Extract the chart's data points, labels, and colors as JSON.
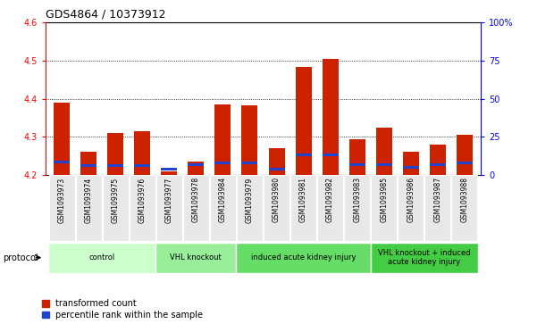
{
  "title": "GDS4864 / 10373912",
  "samples": [
    "GSM1093973",
    "GSM1093974",
    "GSM1093975",
    "GSM1093976",
    "GSM1093977",
    "GSM1093978",
    "GSM1093984",
    "GSM1093979",
    "GSM1093980",
    "GSM1093981",
    "GSM1093982",
    "GSM1093983",
    "GSM1093985",
    "GSM1093986",
    "GSM1093987",
    "GSM1093988"
  ],
  "red_values": [
    4.39,
    4.26,
    4.31,
    4.315,
    4.21,
    4.235,
    4.385,
    4.383,
    4.27,
    4.484,
    4.505,
    4.295,
    4.325,
    4.26,
    4.28,
    4.305
  ],
  "blue_values": [
    4.235,
    4.225,
    4.225,
    4.225,
    4.215,
    4.228,
    4.232,
    4.232,
    4.215,
    4.252,
    4.252,
    4.228,
    4.228,
    4.22,
    4.228,
    4.232
  ],
  "ymin": 4.2,
  "ymax": 4.6,
  "yticks_left": [
    4.2,
    4.3,
    4.4,
    4.5,
    4.6
  ],
  "yticks_right_labels": [
    "0",
    "25",
    "50",
    "75",
    "100%"
  ],
  "yticks_right_vals": [
    4.2,
    4.3,
    4.4,
    4.5,
    4.6
  ],
  "groups": [
    {
      "label": "control",
      "indices": [
        0,
        1,
        2,
        3
      ],
      "color": "#ccffcc"
    },
    {
      "label": "VHL knockout",
      "indices": [
        4,
        5,
        6
      ],
      "color": "#99ee99"
    },
    {
      "label": "induced acute kidney injury",
      "indices": [
        7,
        8,
        9,
        10,
        11
      ],
      "color": "#66dd66"
    },
    {
      "label": "VHL knockout + induced\nacute kidney injury",
      "indices": [
        12,
        13,
        14,
        15
      ],
      "color": "#44cc44"
    }
  ],
  "bar_color": "#cc2200",
  "blue_color": "#2244cc",
  "bar_width": 0.6,
  "bg_color": "#cccccc",
  "plot_bg": "#ffffff",
  "legend_red": "transformed count",
  "legend_blue": "percentile rank within the sample",
  "protocol_label": "protocol",
  "title_fontsize": 9,
  "tick_fontsize": 7,
  "label_fontsize": 7
}
